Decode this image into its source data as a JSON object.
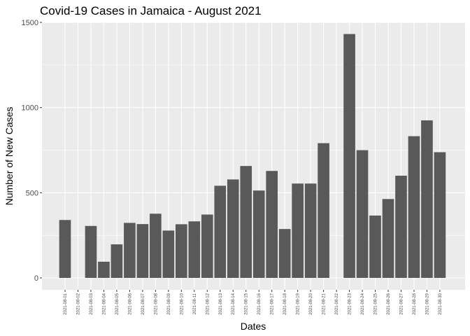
{
  "chart_data": {
    "type": "bar",
    "title": "Covid-19 Cases in Jamaica - August 2021",
    "xlabel": "Dates",
    "ylabel": "Number of New Cases",
    "ylim": [
      -60,
      1500
    ],
    "yticks": [
      0,
      500,
      1000,
      1500
    ],
    "grid": true,
    "legend": "none",
    "colors": {
      "panel": "#ebebeb",
      "grid": "#ffffff",
      "bar": "#595959",
      "tick": "#333333"
    },
    "categories": [
      "2021-08-01",
      "2021-08-02",
      "2021-08-03",
      "2021-08-04",
      "2021-08-05",
      "2021-08-06",
      "2021-08-07",
      "2021-08-08",
      "2021-08-09",
      "2021-08-10",
      "2021-08-11",
      "2021-08-12",
      "2021-08-13",
      "2021-08-14",
      "2021-08-15",
      "2021-08-16",
      "2021-08-17",
      "2021-08-18",
      "2021-08-19",
      "2021-08-20",
      "2021-08-21",
      "2021-08-22",
      "2021-08-23",
      "2021-08-24",
      "2021-08-25",
      "2021-08-26",
      "2021-08-27",
      "2021-08-28",
      "2021-08-29",
      "2021-08-30"
    ],
    "values": [
      340,
      null,
      305,
      95,
      197,
      323,
      316,
      377,
      278,
      315,
      332,
      372,
      541,
      578,
      657,
      513,
      628,
      287,
      554,
      554,
      791,
      null,
      1432,
      750,
      366,
      463,
      600,
      832,
      925,
      738
    ]
  }
}
